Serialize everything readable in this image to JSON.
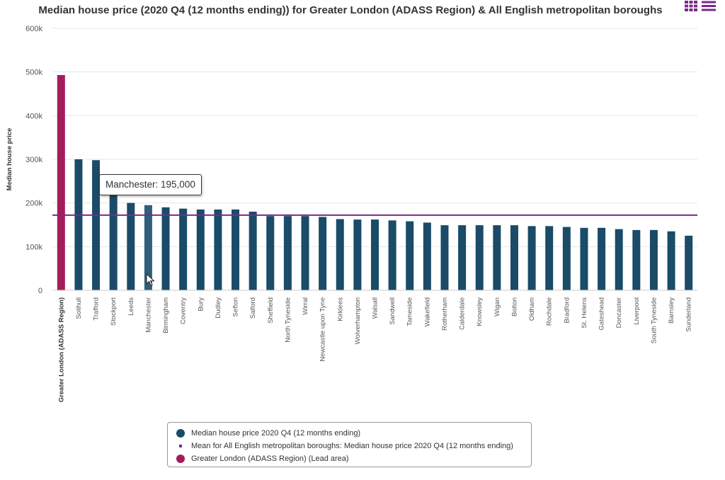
{
  "chart_data": {
    "type": "bar",
    "title": "Median house price (2020 Q4 (12 months ending)) for Greater London (ADASS Region) & All English metropolitan boroughs",
    "ylabel": "Median house price",
    "xlabel": "",
    "ylim": [
      0,
      600000
    ],
    "yticks": [
      0,
      100000,
      200000,
      300000,
      400000,
      500000,
      600000
    ],
    "ytick_labels": [
      "0",
      "100k",
      "200k",
      "300k",
      "400k",
      "500k",
      "600k"
    ],
    "grid": true,
    "legend_position": "bottom",
    "categories": [
      "Greater London (ADASS Region)",
      "Solihull",
      "Trafford",
      "Stockport",
      "Leeds",
      "Manchester",
      "Birmingham",
      "Coventry",
      "Bury",
      "Dudley",
      "Sefton",
      "Salford",
      "Sheffield",
      "North Tyneside",
      "Wirral",
      "Newcastle upon Tyne",
      "Kirklees",
      "Wolverhampton",
      "Walsall",
      "Sandwell",
      "Tameside",
      "Wakefield",
      "Rotherham",
      "Calderdale",
      "Knowsley",
      "Wigan",
      "Bolton",
      "Oldham",
      "Rochdale",
      "Bradford",
      "St. Helens",
      "Gateshead",
      "Doncaster",
      "Liverpool",
      "South Tyneside",
      "Barnsley",
      "Sunderland"
    ],
    "values": [
      493000,
      300000,
      298000,
      218000,
      200000,
      195000,
      190000,
      187000,
      185000,
      185000,
      185000,
      180000,
      170000,
      170000,
      170000,
      168000,
      163000,
      162000,
      162000,
      160000,
      158000,
      155000,
      149000,
      149000,
      149000,
      149000,
      149000,
      147000,
      147000,
      145000,
      143000,
      143000,
      140000,
      138000,
      138000,
      135000,
      125000
    ],
    "mean_value": 172000,
    "lead_index": 0,
    "highlight_index": 5,
    "tooltip": "Manchester: 195,000",
    "legend": [
      {
        "label": "Median house price 2020 Q4 (12 months ending)",
        "symbol": "dot",
        "color": "#1a4b68"
      },
      {
        "label": "Mean for All English metropolitan boroughs: Median house price 2020 Q4 (12 months ending)",
        "symbol": "small-square",
        "color": "#7a2a8a"
      },
      {
        "label": "Greater London (ADASS Region) (Lead area)",
        "symbol": "dot",
        "color": "#a51c5c"
      }
    ]
  },
  "colors": {
    "bar": "#1a4b68",
    "bar_hover": "#2f5f7a",
    "lead": "#a51c5c",
    "mean_line": "#7a2a8a",
    "menu_icon": "#7a2a8a"
  },
  "icons": {
    "menu": [
      "grid-icon",
      "list-icon"
    ]
  }
}
